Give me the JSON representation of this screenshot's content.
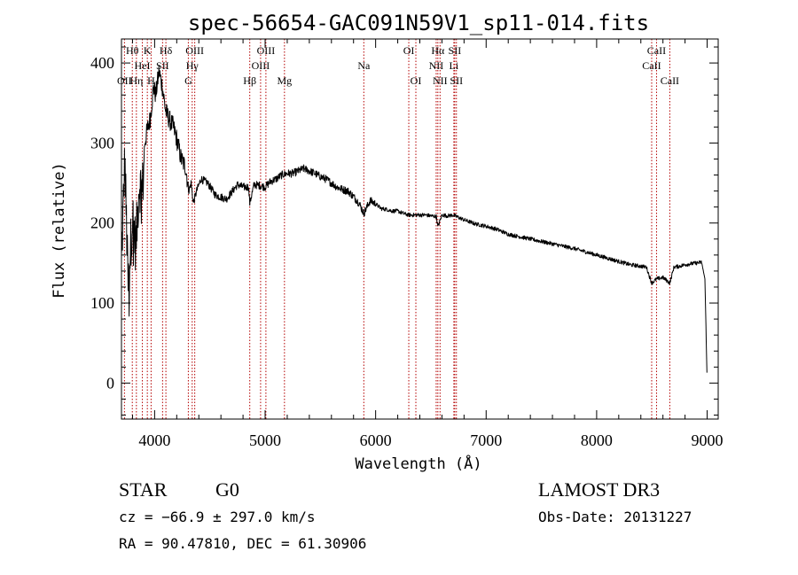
{
  "chart_data": {
    "type": "line",
    "title": "spec-56654-GAC091N59V1_sp11-014.fits",
    "xlabel": "Wavelength (Å)",
    "ylabel": "Flux (relative)",
    "xlim": [
      3700,
      9100
    ],
    "ylim": [
      -45,
      430
    ],
    "xticks": [
      "4000",
      "5000",
      "6000",
      "7000",
      "8000",
      "9000"
    ],
    "yticks": [
      "0",
      "100",
      "200",
      "300",
      "400"
    ],
    "spectrum_anchors": {
      "x": [
        3700,
        3730,
        3760,
        3800,
        3830,
        3860,
        3890,
        3910,
        3940,
        3960,
        3990,
        4010,
        4040,
        4070,
        4100,
        4130,
        4170,
        4200,
        4240,
        4280,
        4310,
        4330,
        4350,
        4380,
        4420,
        4480,
        4550,
        4650,
        4750,
        4800,
        4850,
        4861,
        4900,
        4950,
        5000,
        5050,
        5100,
        5150,
        5200,
        5250,
        5300,
        5350,
        5400,
        5450,
        5500,
        5550,
        5600,
        5650,
        5700,
        5750,
        5800,
        5850,
        5893,
        5950,
        6000,
        6050,
        6100,
        6150,
        6200,
        6250,
        6300,
        6350,
        6400,
        6450,
        6500,
        6550,
        6563,
        6600,
        6650,
        6700,
        6800,
        6900,
        7000,
        7100,
        7200,
        7300,
        7400,
        7500,
        7600,
        7700,
        7800,
        7900,
        8000,
        8100,
        8200,
        8300,
        8400,
        8450,
        8498,
        8542,
        8600,
        8662,
        8700,
        8750,
        8800,
        8850,
        8900,
        8950,
        8980,
        9000
      ],
      "flux": [
        150,
        280,
        120,
        210,
        170,
        250,
        240,
        300,
        320,
        330,
        370,
        360,
        390,
        370,
        340,
        330,
        320,
        305,
        280,
        270,
        240,
        250,
        225,
        240,
        255,
        250,
        235,
        230,
        248,
        245,
        245,
        225,
        248,
        247,
        245,
        252,
        255,
        260,
        262,
        262,
        265,
        268,
        265,
        262,
        258,
        255,
        250,
        245,
        242,
        240,
        233,
        225,
        212,
        228,
        224,
        218,
        217,
        215,
        215,
        212,
        210,
        210,
        210,
        210,
        209,
        208,
        195,
        210,
        209,
        210,
        204,
        199,
        196,
        192,
        186,
        183,
        180,
        177,
        174,
        171,
        168,
        164,
        160,
        156,
        152,
        148,
        146,
        145,
        125,
        130,
        132,
        125,
        145,
        146,
        148,
        149,
        150,
        151,
        130,
        0
      ]
    },
    "line_labels": [
      {
        "name": "Hθ",
        "wavelength": 3798,
        "row": 0
      },
      {
        "name": "K",
        "wavelength": 3934,
        "row": 0
      },
      {
        "name": "Hδ",
        "wavelength": 4102,
        "row": 0
      },
      {
        "name": "OIII",
        "wavelength": 4363,
        "row": 0
      },
      {
        "name": "OIII",
        "wavelength": 5007,
        "row": 0
      },
      {
        "name": "OI",
        "wavelength": 6300,
        "row": 0
      },
      {
        "name": "Hα",
        "wavelength": 6563,
        "row": 0
      },
      {
        "name": "SII",
        "wavelength": 6716,
        "row": 0
      },
      {
        "name": "CaII",
        "wavelength": 8542,
        "row": 0
      },
      {
        "name": "HeI",
        "wavelength": 3889,
        "row": 1
      },
      {
        "name": "SII",
        "wavelength": 4072,
        "row": 1
      },
      {
        "name": "Hγ",
        "wavelength": 4340,
        "row": 1
      },
      {
        "name": "OIII",
        "wavelength": 4959,
        "row": 1
      },
      {
        "name": "Na",
        "wavelength": 5893,
        "row": 1
      },
      {
        "name": "NII",
        "wavelength": 6548,
        "row": 1
      },
      {
        "name": "Li",
        "wavelength": 6708,
        "row": 1
      },
      {
        "name": "CaII",
        "wavelength": 8498,
        "row": 1
      },
      {
        "name": "OII",
        "wavelength": 3727,
        "row": 2
      },
      {
        "name": "Hη",
        "wavelength": 3835,
        "row": 2
      },
      {
        "name": "H",
        "wavelength": 3968,
        "row": 2
      },
      {
        "name": "G",
        "wavelength": 4305,
        "row": 2
      },
      {
        "name": "Hβ",
        "wavelength": 4861,
        "row": 2
      },
      {
        "name": "Mg",
        "wavelength": 5175,
        "row": 2
      },
      {
        "name": "OI",
        "wavelength": 6364,
        "row": 2
      },
      {
        "name": "NII",
        "wavelength": 6583,
        "row": 2
      },
      {
        "name": "SII",
        "wavelength": 6731,
        "row": 2
      },
      {
        "name": "CaII",
        "wavelength": 8662,
        "row": 2
      }
    ],
    "marker_lines": [
      3727,
      3798,
      3835,
      3889,
      3934,
      3968,
      4072,
      4102,
      4305,
      4340,
      4363,
      4861,
      4959,
      5007,
      5175,
      5893,
      6300,
      6364,
      6548,
      6563,
      6583,
      6708,
      6716,
      6731,
      8498,
      8542,
      8662
    ]
  },
  "info": {
    "class": "STAR",
    "subclass": "G0",
    "survey": "LAMOST DR3",
    "cz": "cz = −66.9 ± 297.0 km/s",
    "obs_date": "Obs-Date: 20131227",
    "radec": "RA =  90.47810, DEC =  61.30906"
  },
  "colors": {
    "spectrum": "#000000",
    "marker": "#b40000",
    "axes": "#000000"
  }
}
